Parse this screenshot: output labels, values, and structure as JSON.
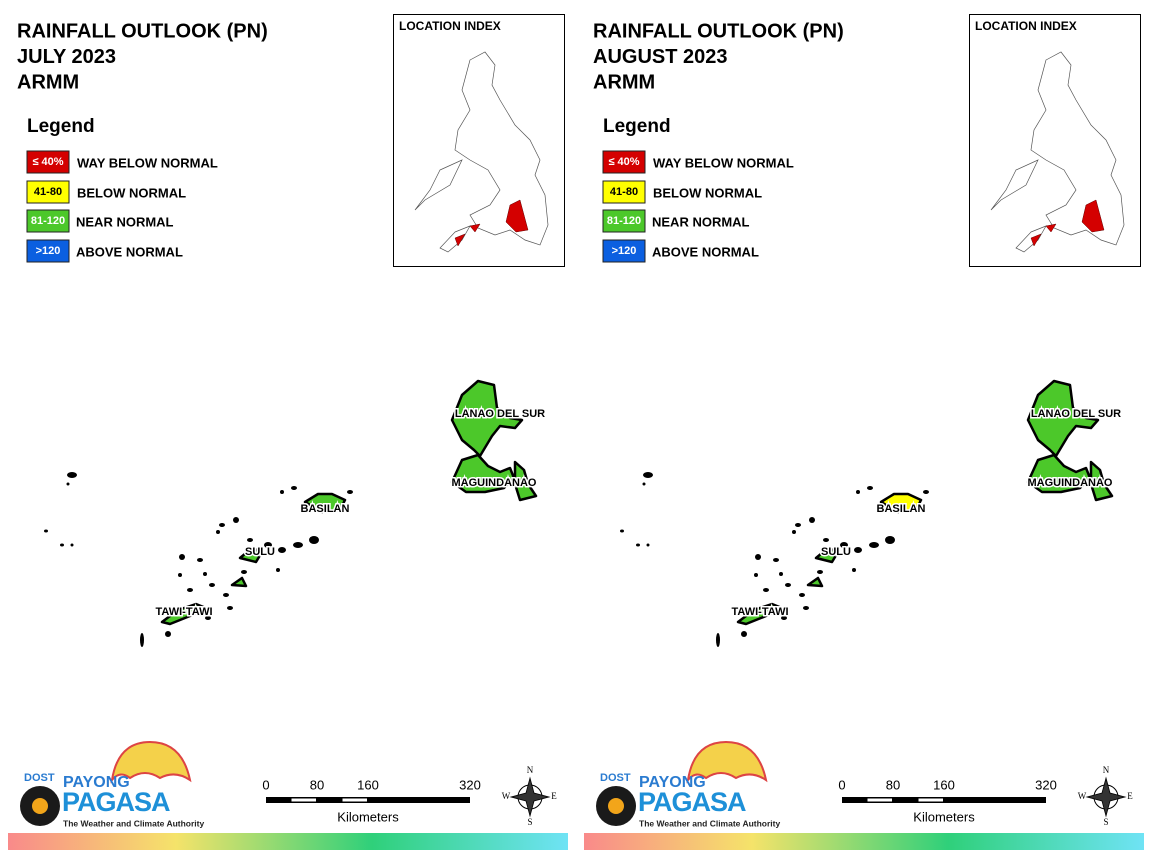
{
  "panels": [
    {
      "title": [
        "RAINFALL OUTLOOK (PN)",
        "JULY 2023",
        "ARMM"
      ],
      "legend": {
        "title": "Legend",
        "items": [
          {
            "code": "≤ 40%",
            "label": "WAY BELOW NORMAL",
            "color": "#d40000"
          },
          {
            "code": "41-80",
            "label": "BELOW NORMAL",
            "color": "#ffff00"
          },
          {
            "code": "81-120",
            "label": "NEAR NORMAL",
            "color": "#4cc82a"
          },
          {
            "code": ">120",
            "label": "ABOVE NORMAL",
            "color": "#0b5fe0"
          }
        ]
      },
      "location_index": "LOCATION INDEX",
      "regions": [
        {
          "name": "LANAO DEL SUR",
          "color": "#4cc82a"
        },
        {
          "name": "MAGUINDANAO",
          "color": "#4cc82a"
        },
        {
          "name": "BASILAN",
          "color": "#4cc82a"
        },
        {
          "name": "SULU",
          "color": "#4cc82a"
        },
        {
          "name": "TAWI-TAWI",
          "color": "#4cc82a"
        }
      ],
      "scale": {
        "ticks": [
          0,
          80,
          160,
          320
        ],
        "unit": "Kilometers"
      },
      "compass": {
        "n": "N",
        "e": "E",
        "s": "S",
        "w": "W"
      },
      "logo": {
        "dost": "DOST",
        "payong": "PAYONG",
        "pagasa": "PAGASA",
        "tagline": "The Weather and Climate Authority"
      }
    },
    {
      "title": [
        "RAINFALL OUTLOOK (PN)",
        "AUGUST 2023",
        "ARMM"
      ],
      "legend": {
        "title": "Legend",
        "items": [
          {
            "code": "≤ 40%",
            "label": "WAY BELOW NORMAL",
            "color": "#d40000"
          },
          {
            "code": "41-80",
            "label": "BELOW NORMAL",
            "color": "#ffff00"
          },
          {
            "code": "81-120",
            "label": "NEAR NORMAL",
            "color": "#4cc82a"
          },
          {
            "code": ">120",
            "label": "ABOVE NORMAL",
            "color": "#0b5fe0"
          }
        ]
      },
      "location_index": "LOCATION INDEX",
      "regions": [
        {
          "name": "LANAO DEL SUR",
          "color": "#4cc82a"
        },
        {
          "name": "MAGUINDANAO",
          "color": "#4cc82a"
        },
        {
          "name": "BASILAN",
          "color": "#ffff00"
        },
        {
          "name": "SULU",
          "color": "#4cc82a"
        },
        {
          "name": "TAWI-TAWI",
          "color": "#4cc82a"
        }
      ],
      "scale": {
        "ticks": [
          0,
          80,
          160,
          320
        ],
        "unit": "Kilometers"
      },
      "compass": {
        "n": "N",
        "e": "E",
        "s": "S",
        "w": "W"
      },
      "logo": {
        "dost": "DOST",
        "payong": "PAYONG",
        "pagasa": "PAGASA",
        "tagline": "The Weather and Climate Authority"
      }
    }
  ]
}
